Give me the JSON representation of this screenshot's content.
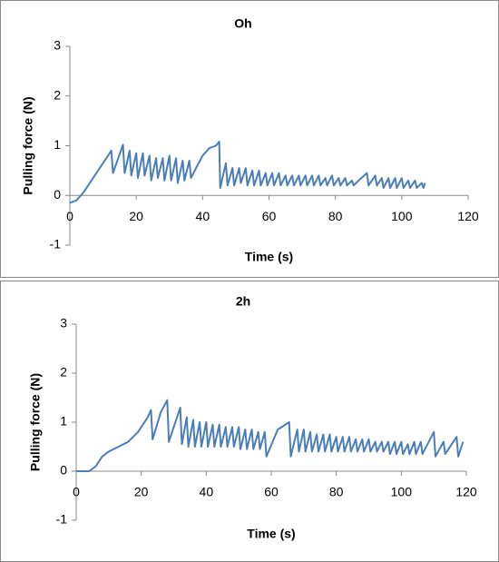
{
  "chart_data": [
    {
      "type": "line",
      "title": "Oh",
      "xlabel": "Time (s)",
      "ylabel": "Pulling force (N)",
      "color": "#4a7ebb",
      "xlim": [
        0,
        120
      ],
      "xticks": [
        0,
        20,
        40,
        60,
        80,
        100,
        120
      ],
      "ylim": [
        -1,
        3
      ],
      "yticks": [
        -1,
        0,
        1,
        2,
        3
      ],
      "x": [
        0,
        2,
        4,
        7,
        10,
        12.5,
        13,
        16,
        16.5,
        18,
        18.5,
        20,
        20.5,
        22,
        22.5,
        24,
        24.5,
        26,
        26.5,
        28,
        28.5,
        30,
        30.5,
        32,
        32.5,
        34,
        34.5,
        36,
        36.5,
        38,
        40,
        42,
        44,
        45,
        45.3,
        47,
        47.5,
        49,
        49.5,
        51,
        51.5,
        53,
        53.5,
        55,
        55.5,
        57,
        57.5,
        59,
        59.5,
        61,
        61.5,
        63,
        63.5,
        65,
        65.5,
        67,
        67.5,
        69,
        69.5,
        71,
        71.5,
        73,
        73.5,
        75,
        75.5,
        77,
        77.5,
        79,
        79.5,
        81,
        81.5,
        83,
        83.5,
        85,
        85.5,
        87,
        89.5,
        90,
        92,
        92.5,
        94,
        94.5,
        96,
        96.5,
        98,
        98.5,
        100,
        100.5,
        102,
        102.5,
        104,
        104.5,
        106,
        106.5,
        107
      ],
      "values": [
        -0.15,
        -0.1,
        0.05,
        0.35,
        0.65,
        0.9,
        0.45,
        1.02,
        0.45,
        0.9,
        0.4,
        0.85,
        0.35,
        0.85,
        0.4,
        0.8,
        0.3,
        0.75,
        0.35,
        0.75,
        0.3,
        0.8,
        0.3,
        0.75,
        0.25,
        0.7,
        0.3,
        0.7,
        0.35,
        0.55,
        0.8,
        0.95,
        1.0,
        1.08,
        0.15,
        0.65,
        0.2,
        0.55,
        0.2,
        0.55,
        0.25,
        0.55,
        0.2,
        0.5,
        0.2,
        0.5,
        0.2,
        0.45,
        0.2,
        0.45,
        0.2,
        0.45,
        0.2,
        0.4,
        0.2,
        0.4,
        0.2,
        0.4,
        0.2,
        0.4,
        0.2,
        0.4,
        0.2,
        0.4,
        0.2,
        0.35,
        0.2,
        0.4,
        0.2,
        0.35,
        0.2,
        0.35,
        0.2,
        0.3,
        0.2,
        0.3,
        0.45,
        0.2,
        0.4,
        0.2,
        0.35,
        0.15,
        0.35,
        0.15,
        0.35,
        0.15,
        0.35,
        0.15,
        0.3,
        0.15,
        0.3,
        0.15,
        0.25,
        0.15,
        0.25
      ]
    },
    {
      "type": "line",
      "title": "2h",
      "xlabel": "Time (s)",
      "ylabel": "Pulling force (N)",
      "color": "#4a7ebb",
      "xlim": [
        0,
        120
      ],
      "xticks": [
        0,
        20,
        40,
        60,
        80,
        100,
        120
      ],
      "ylim": [
        -1,
        3
      ],
      "yticks": [
        -1,
        0,
        1,
        2,
        3
      ],
      "x": [
        0,
        4,
        6,
        8,
        10,
        13,
        16,
        19,
        22,
        23,
        23.5,
        26,
        28,
        28.5,
        32,
        32.5,
        34,
        34.5,
        36,
        36.5,
        38,
        38.5,
        40,
        40.5,
        42,
        42.5,
        44,
        44.5,
        46,
        46.5,
        48,
        48.5,
        50,
        50.5,
        52,
        52.5,
        54,
        54.5,
        56,
        56.5,
        58,
        58.5,
        62,
        65.5,
        66,
        68,
        68.5,
        70,
        70.5,
        72,
        72.5,
        74,
        74.5,
        76,
        76.5,
        78,
        78.5,
        80,
        80.5,
        82,
        82.5,
        84,
        84.5,
        86,
        86.5,
        88,
        88.5,
        90,
        90.5,
        92,
        92.5,
        94,
        94.5,
        96,
        96.5,
        98,
        98.5,
        100,
        100.5,
        102,
        102.5,
        104,
        104.5,
        106,
        106.5,
        110,
        110.5,
        113,
        113.5,
        117,
        117.5,
        118,
        119
      ],
      "values": [
        0,
        0,
        0.1,
        0.3,
        0.4,
        0.5,
        0.6,
        0.8,
        1.1,
        1.25,
        0.65,
        1.2,
        1.45,
        0.6,
        1.3,
        0.55,
        1.1,
        0.5,
        1.05,
        0.5,
        1.0,
        0.5,
        1.0,
        0.5,
        0.95,
        0.5,
        0.95,
        0.5,
        0.9,
        0.5,
        0.9,
        0.5,
        0.9,
        0.45,
        0.85,
        0.45,
        0.85,
        0.45,
        0.8,
        0.45,
        0.8,
        0.3,
        0.85,
        1.0,
        0.3,
        0.85,
        0.4,
        0.85,
        0.4,
        0.8,
        0.4,
        0.75,
        0.4,
        0.75,
        0.4,
        0.75,
        0.4,
        0.7,
        0.4,
        0.7,
        0.4,
        0.7,
        0.4,
        0.65,
        0.4,
        0.65,
        0.4,
        0.65,
        0.4,
        0.6,
        0.4,
        0.6,
        0.4,
        0.6,
        0.35,
        0.6,
        0.35,
        0.6,
        0.35,
        0.55,
        0.35,
        0.6,
        0.35,
        0.6,
        0.35,
        0.8,
        0.3,
        0.6,
        0.35,
        0.7,
        0.3,
        0.4,
        0.6
      ]
    }
  ]
}
